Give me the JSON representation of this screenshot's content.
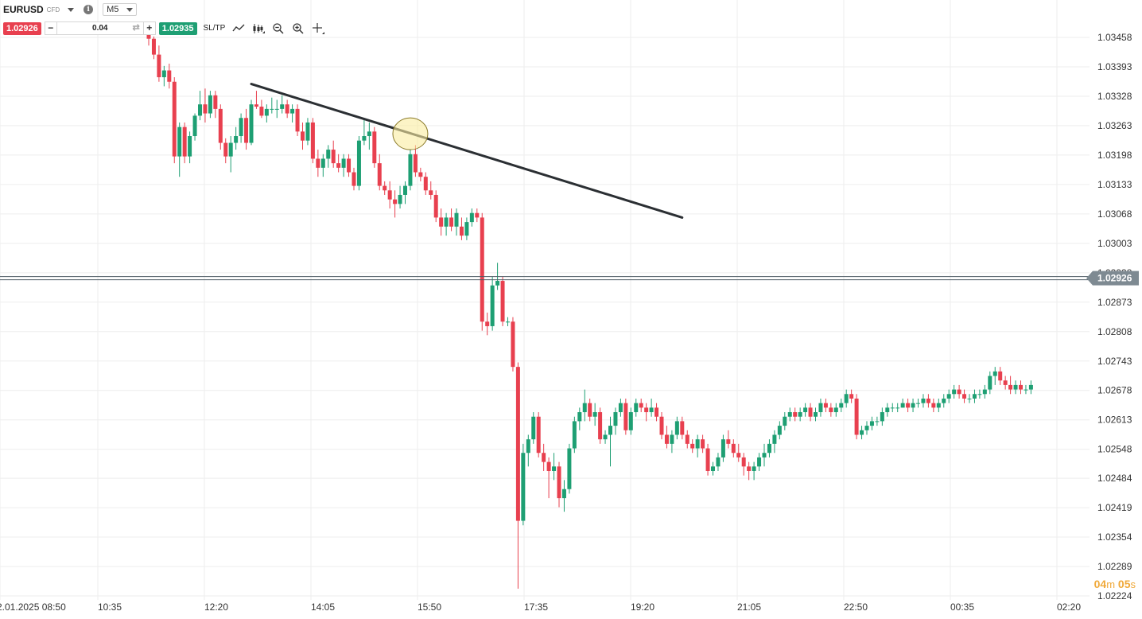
{
  "header": {
    "symbol": "EURUSD",
    "instrument_type": "CFD",
    "timeframe": "M5",
    "sell_price": "1.02926",
    "buy_price": "1.02935",
    "quantity": "0.04",
    "minus_label": "−",
    "plus_label": "+",
    "sltp_label": "SL/TP",
    "info_label": "i",
    "tools": [
      "line-tool-icon",
      "chart-type-icon",
      "zoom-out-icon",
      "zoom-in-icon",
      "crosshair-icon"
    ]
  },
  "timer": {
    "minutes": "04",
    "m_unit": "m",
    "seconds": "05",
    "s_unit": "s"
  },
  "colors": {
    "up": "#1e9f73",
    "down": "#e8404f",
    "grid": "#eeeeee",
    "trendline": "#2b2f33",
    "current_price_line": "#4d5a63",
    "timer": "#f0a93a"
  },
  "current_price": {
    "value": 1.02926,
    "label": "1.02926"
  },
  "chart_data": {
    "type": "candlestick",
    "title": "",
    "ylim": [
      1.022,
      1.0349
    ],
    "y_ticks": [
      "1.03458",
      "1.03393",
      "1.03328",
      "1.03263",
      "1.03198",
      "1.03133",
      "1.03068",
      "1.03003",
      "1.02938",
      "1.02873",
      "1.02808",
      "1.02743",
      "1.02678",
      "1.02613",
      "1.02548",
      "1.02484",
      "1.02419",
      "1.02354",
      "1.02289",
      "1.02224"
    ],
    "x_ticks": [
      "2.01.2025 08:50",
      "10:35",
      "12:20",
      "14:05",
      "15:50",
      "17:35",
      "19:20",
      "21:05",
      "22:50",
      "00:35",
      "02:20"
    ],
    "candles_ohlc": [
      [
        1.0347,
        1.0349,
        1.0344,
        1.03455
      ],
      [
        1.03455,
        1.0346,
        1.0341,
        1.0342
      ],
      [
        1.0342,
        1.0344,
        1.0336,
        1.0337
      ],
      [
        1.0337,
        1.03395,
        1.0335,
        1.03385
      ],
      [
        1.03385,
        1.034,
        1.03345,
        1.0336
      ],
      [
        1.0336,
        1.0337,
        1.0318,
        1.03195
      ],
      [
        1.03195,
        1.0327,
        1.0315,
        1.0326
      ],
      [
        1.0326,
        1.0327,
        1.0318,
        1.03195
      ],
      [
        1.03195,
        1.0325,
        1.0318,
        1.0324
      ],
      [
        1.0324,
        1.0329,
        1.0323,
        1.03285
      ],
      [
        1.03285,
        1.0334,
        1.03275,
        1.0331
      ],
      [
        1.0331,
        1.03345,
        1.0327,
        1.0329
      ],
      [
        1.0329,
        1.0334,
        1.0328,
        1.0333
      ],
      [
        1.0333,
        1.0334,
        1.0328,
        1.033
      ],
      [
        1.033,
        1.0331,
        1.0321,
        1.03225
      ],
      [
        1.03225,
        1.03235,
        1.0318,
        1.03195
      ],
      [
        1.03195,
        1.0324,
        1.0316,
        1.03225
      ],
      [
        1.03225,
        1.0326,
        1.0321,
        1.0324
      ],
      [
        1.0324,
        1.0329,
        1.03225,
        1.0328
      ],
      [
        1.0328,
        1.033,
        1.0321,
        1.03225
      ],
      [
        1.03225,
        1.0332,
        1.0322,
        1.0331
      ],
      [
        1.0331,
        1.0334,
        1.033,
        1.03305
      ],
      [
        1.03305,
        1.0332,
        1.0328,
        1.03285
      ],
      [
        1.03285,
        1.0331,
        1.0327,
        1.033
      ],
      [
        1.033,
        1.03325,
        1.0329,
        1.033
      ],
      [
        1.033,
        1.0332,
        1.0328,
        1.033
      ],
      [
        1.033,
        1.0333,
        1.0329,
        1.0331
      ],
      [
        1.0331,
        1.0332,
        1.0328,
        1.0329
      ],
      [
        1.0329,
        1.0331,
        1.0327,
        1.033
      ],
      [
        1.033,
        1.0331,
        1.0324,
        1.0325
      ],
      [
        1.0325,
        1.0327,
        1.0321,
        1.0323
      ],
      [
        1.0323,
        1.0328,
        1.0322,
        1.0327
      ],
      [
        1.0327,
        1.0328,
        1.0318,
        1.0319
      ],
      [
        1.0319,
        1.0321,
        1.0315,
        1.0317
      ],
      [
        1.0317,
        1.032,
        1.0315,
        1.0319
      ],
      [
        1.0319,
        1.0322,
        1.0317,
        1.0321
      ],
      [
        1.0321,
        1.0323,
        1.0317,
        1.0318
      ],
      [
        1.0318,
        1.032,
        1.0316,
        1.0317
      ],
      [
        1.0317,
        1.032,
        1.0315,
        1.0319
      ],
      [
        1.0319,
        1.032,
        1.0315,
        1.0316
      ],
      [
        1.0316,
        1.0317,
        1.0312,
        1.0313
      ],
      [
        1.0313,
        1.0324,
        1.0312,
        1.0323
      ],
      [
        1.0323,
        1.0328,
        1.0322,
        1.0324
      ],
      [
        1.0324,
        1.0327,
        1.0321,
        1.0325
      ],
      [
        1.0325,
        1.0326,
        1.0317,
        1.0318
      ],
      [
        1.0318,
        1.032,
        1.0312,
        1.0313
      ],
      [
        1.0313,
        1.0314,
        1.0311,
        1.0312
      ],
      [
        1.0312,
        1.0314,
        1.0308,
        1.031
      ],
      [
        1.031,
        1.0312,
        1.0306,
        1.0309
      ],
      [
        1.0309,
        1.0313,
        1.0308,
        1.0311
      ],
      [
        1.0311,
        1.0314,
        1.0309,
        1.0313
      ],
      [
        1.0313,
        1.0321,
        1.0312,
        1.032
      ],
      [
        1.032,
        1.0322,
        1.0315,
        1.0316
      ],
      [
        1.0316,
        1.0317,
        1.0314,
        1.0315
      ],
      [
        1.0315,
        1.0316,
        1.0311,
        1.0312
      ],
      [
        1.0312,
        1.0314,
        1.031,
        1.0311
      ],
      [
        1.0311,
        1.0312,
        1.0305,
        1.0306
      ],
      [
        1.0306,
        1.0308,
        1.0302,
        1.0304
      ],
      [
        1.0304,
        1.0307,
        1.0302,
        1.0306
      ],
      [
        1.0306,
        1.0308,
        1.0303,
        1.0304
      ],
      [
        1.0304,
        1.0308,
        1.0302,
        1.0307
      ],
      [
        1.0304,
        1.0306,
        1.0301,
        1.0302
      ],
      [
        1.0302,
        1.0306,
        1.0301,
        1.0305
      ],
      [
        1.0305,
        1.0308,
        1.0304,
        1.0307
      ],
      [
        1.0307,
        1.0308,
        1.0305,
        1.0306
      ],
      [
        1.0306,
        1.0307,
        1.0281,
        1.0283
      ],
      [
        1.0283,
        1.0285,
        1.028,
        1.0282
      ],
      [
        1.0282,
        1.0293,
        1.0281,
        1.0291
      ],
      [
        1.0291,
        1.0296,
        1.029,
        1.0292
      ],
      [
        1.0292,
        1.0293,
        1.0282,
        1.0283
      ],
      [
        1.0283,
        1.0284,
        1.0282,
        1.0283
      ],
      [
        1.0283,
        1.0284,
        1.0272,
        1.0273
      ],
      [
        1.0273,
        1.0274,
        1.0224,
        1.0239
      ],
      [
        1.0239,
        1.0256,
        1.0238,
        1.0254
      ],
      [
        1.0254,
        1.0258,
        1.0251,
        1.0257
      ],
      [
        1.0257,
        1.0263,
        1.0256,
        1.0262
      ],
      [
        1.0262,
        1.0263,
        1.0253,
        1.0254
      ],
      [
        1.0254,
        1.0256,
        1.025,
        1.0252
      ],
      [
        1.0252,
        1.0253,
        1.0244,
        1.025
      ],
      [
        1.025,
        1.0254,
        1.0248,
        1.0251
      ],
      [
        1.0251,
        1.0252,
        1.0242,
        1.0244
      ],
      [
        1.0244,
        1.0248,
        1.0241,
        1.0246
      ],
      [
        1.0246,
        1.0256,
        1.0245,
        1.0255
      ],
      [
        1.0255,
        1.0262,
        1.0254,
        1.0261
      ],
      [
        1.0261,
        1.0264,
        1.0259,
        1.0263
      ],
      [
        1.0263,
        1.0268,
        1.0261,
        1.0265
      ],
      [
        1.0265,
        1.0266,
        1.0261,
        1.0262
      ],
      [
        1.0262,
        1.0265,
        1.026,
        1.0263
      ],
      [
        1.0263,
        1.0264,
        1.0256,
        1.0257
      ],
      [
        1.0257,
        1.0259,
        1.0256,
        1.0258
      ],
      [
        1.0258,
        1.0262,
        1.0251,
        1.026
      ],
      [
        1.026,
        1.0264,
        1.0258,
        1.0263
      ],
      [
        1.0263,
        1.0266,
        1.0262,
        1.0265
      ],
      [
        1.0265,
        1.0266,
        1.0258,
        1.0259
      ],
      [
        1.0259,
        1.0264,
        1.0258,
        1.0263
      ],
      [
        1.0263,
        1.0266,
        1.0262,
        1.0265
      ],
      [
        1.0265,
        1.0266,
        1.0263,
        1.0264
      ],
      [
        1.0264,
        1.0265,
        1.0261,
        1.0263
      ],
      [
        1.0263,
        1.0266,
        1.0262,
        1.0264
      ],
      [
        1.0264,
        1.0265,
        1.0261,
        1.0262
      ],
      [
        1.0262,
        1.0263,
        1.0257,
        1.0258
      ],
      [
        1.0258,
        1.026,
        1.0255,
        1.0256
      ],
      [
        1.0256,
        1.0259,
        1.0254,
        1.0258
      ],
      [
        1.0258,
        1.0262,
        1.0257,
        1.0261
      ],
      [
        1.0261,
        1.0262,
        1.0257,
        1.0258
      ],
      [
        1.0258,
        1.0259,
        1.0255,
        1.0256
      ],
      [
        1.0256,
        1.0257,
        1.0254,
        1.0255
      ],
      [
        1.0255,
        1.0258,
        1.0253,
        1.0257
      ],
      [
        1.0257,
        1.0258,
        1.0254,
        1.0255
      ],
      [
        1.0255,
        1.0256,
        1.0249,
        1.025
      ],
      [
        1.025,
        1.0252,
        1.0249,
        1.0251
      ],
      [
        1.0251,
        1.0254,
        1.025,
        1.0253
      ],
      [
        1.0253,
        1.0258,
        1.0252,
        1.0257
      ],
      [
        1.0257,
        1.0259,
        1.0255,
        1.0256
      ],
      [
        1.0256,
        1.0257,
        1.0253,
        1.0254
      ],
      [
        1.0254,
        1.0256,
        1.0252,
        1.0253
      ],
      [
        1.0253,
        1.0254,
        1.0249,
        1.0251
      ],
      [
        1.0251,
        1.0252,
        1.0248,
        1.025
      ],
      [
        1.025,
        1.0252,
        1.0248,
        1.0251
      ],
      [
        1.0251,
        1.0254,
        1.025,
        1.0253
      ],
      [
        1.0253,
        1.0256,
        1.0251,
        1.0254
      ],
      [
        1.0254,
        1.0257,
        1.0253,
        1.0256
      ],
      [
        1.0256,
        1.0259,
        1.0254,
        1.0258
      ],
      [
        1.0258,
        1.0261,
        1.0257,
        1.026
      ],
      [
        1.026,
        1.0263,
        1.0259,
        1.0262
      ],
      [
        1.0262,
        1.0264,
        1.0261,
        1.0263
      ],
      [
        1.0263,
        1.0264,
        1.0261,
        1.0262
      ],
      [
        1.0262,
        1.0264,
        1.0261,
        1.0263
      ],
      [
        1.0263,
        1.0265,
        1.0262,
        1.0264
      ],
      [
        1.0264,
        1.0265,
        1.0261,
        1.0262
      ],
      [
        1.0262,
        1.0264,
        1.0261,
        1.0263
      ],
      [
        1.0263,
        1.0266,
        1.0262,
        1.0265
      ],
      [
        1.0265,
        1.0266,
        1.0263,
        1.0264
      ],
      [
        1.0264,
        1.0265,
        1.0262,
        1.0263
      ],
      [
        1.0263,
        1.0265,
        1.0262,
        1.0264
      ],
      [
        1.0264,
        1.0266,
        1.0263,
        1.0265
      ],
      [
        1.0265,
        1.0268,
        1.0264,
        1.0267
      ],
      [
        1.0267,
        1.0268,
        1.0265,
        1.0266
      ],
      [
        1.0266,
        1.0267,
        1.0257,
        1.0258
      ],
      [
        1.0258,
        1.026,
        1.0257,
        1.0259
      ],
      [
        1.0259,
        1.0261,
        1.0258,
        1.026
      ],
      [
        1.026,
        1.0262,
        1.0259,
        1.0261
      ],
      [
        1.0261,
        1.0262,
        1.026,
        1.0261
      ],
      [
        1.0261,
        1.0264,
        1.026,
        1.0263
      ],
      [
        1.0263,
        1.0265,
        1.0262,
        1.0264
      ],
      [
        1.0264,
        1.0265,
        1.0263,
        1.0264
      ],
      [
        1.0264,
        1.0265,
        1.0263,
        1.0264
      ],
      [
        1.0264,
        1.0266,
        1.0264,
        1.0265
      ],
      [
        1.0265,
        1.0266,
        1.0263,
        1.0264
      ],
      [
        1.0264,
        1.0266,
        1.0263,
        1.0265
      ],
      [
        1.0265,
        1.0266,
        1.0264,
        1.0265
      ],
      [
        1.0265,
        1.0267,
        1.0264,
        1.0266
      ],
      [
        1.0266,
        1.0267,
        1.0264,
        1.0265
      ],
      [
        1.0265,
        1.0266,
        1.0263,
        1.0264
      ],
      [
        1.0264,
        1.0266,
        1.0263,
        1.0265
      ],
      [
        1.0265,
        1.0267,
        1.0264,
        1.0266
      ],
      [
        1.0266,
        1.0268,
        1.0265,
        1.0267
      ],
      [
        1.0267,
        1.0269,
        1.0266,
        1.0268
      ],
      [
        1.0268,
        1.0269,
        1.0266,
        1.0267
      ],
      [
        1.0267,
        1.0268,
        1.0265,
        1.0266
      ],
      [
        1.0266,
        1.0267,
        1.0265,
        1.0266
      ],
      [
        1.0266,
        1.0268,
        1.0265,
        1.0267
      ],
      [
        1.0267,
        1.0268,
        1.0266,
        1.0267
      ],
      [
        1.0267,
        1.0269,
        1.0266,
        1.0268
      ],
      [
        1.0268,
        1.0272,
        1.0267,
        1.0271
      ],
      [
        1.0271,
        1.0273,
        1.0269,
        1.0272
      ],
      [
        1.0272,
        1.0273,
        1.0269,
        1.027
      ],
      [
        1.027,
        1.0271,
        1.0268,
        1.0269
      ],
      [
        1.0269,
        1.0271,
        1.0267,
        1.0268
      ],
      [
        1.0268,
        1.027,
        1.0267,
        1.0269
      ],
      [
        1.0269,
        1.027,
        1.0267,
        1.0268
      ],
      [
        1.0268,
        1.0269,
        1.0267,
        1.0268
      ],
      [
        1.0268,
        1.027,
        1.0267,
        1.0269
      ]
    ],
    "annotations": [
      {
        "type": "trendline",
        "from": [
          20,
          1.03355
        ],
        "to": [
          104,
          1.0306
        ]
      },
      {
        "type": "circle",
        "at": [
          51,
          1.03245
        ]
      }
    ]
  }
}
